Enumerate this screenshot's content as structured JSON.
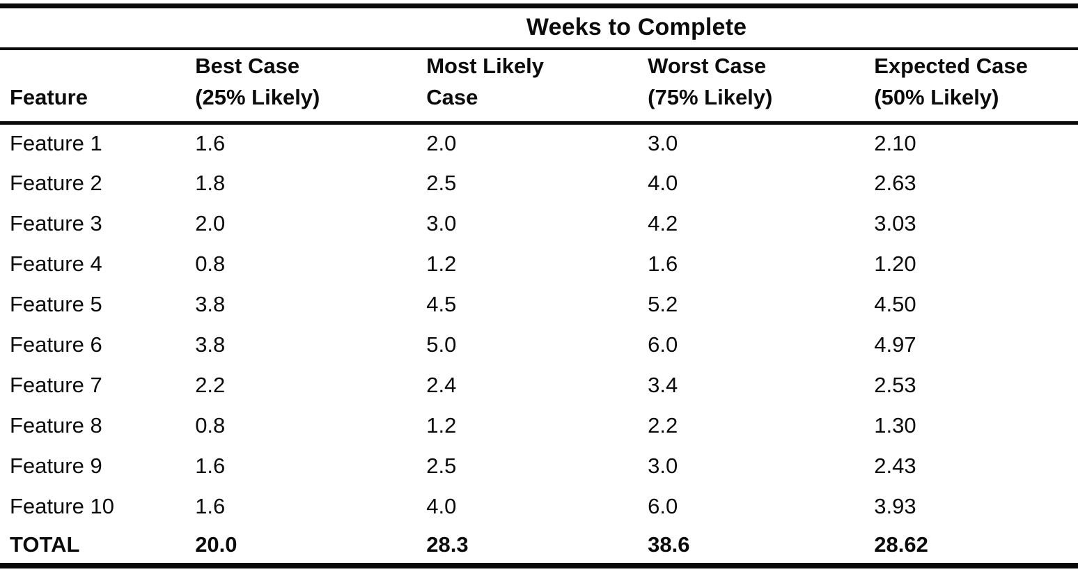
{
  "table": {
    "spanner": "Weeks to Complete",
    "columns": [
      {
        "line1": "",
        "line2": "Feature"
      },
      {
        "line1": "Best Case",
        "line2": "(25% Likely)"
      },
      {
        "line1": "Most Likely",
        "line2": "Case"
      },
      {
        "line1": "Worst Case",
        "line2": "(75% Likely)"
      },
      {
        "line1": "Expected Case",
        "line2": "(50% Likely)"
      }
    ],
    "rows": [
      {
        "feature": "Feature 1",
        "best": "1.6",
        "likely": "2.0",
        "worst": "3.0",
        "expected": "2.10"
      },
      {
        "feature": "Feature 2",
        "best": "1.8",
        "likely": "2.5",
        "worst": "4.0",
        "expected": "2.63"
      },
      {
        "feature": "Feature 3",
        "best": "2.0",
        "likely": "3.0",
        "worst": "4.2",
        "expected": "3.03"
      },
      {
        "feature": "Feature 4",
        "best": "0.8",
        "likely": "1.2",
        "worst": "1.6",
        "expected": "1.20"
      },
      {
        "feature": "Feature 5",
        "best": "3.8",
        "likely": "4.5",
        "worst": "5.2",
        "expected": "4.50"
      },
      {
        "feature": "Feature 6",
        "best": "3.8",
        "likely": "5.0",
        "worst": "6.0",
        "expected": "4.97"
      },
      {
        "feature": "Feature 7",
        "best": "2.2",
        "likely": "2.4",
        "worst": "3.4",
        "expected": "2.53"
      },
      {
        "feature": "Feature 8",
        "best": "0.8",
        "likely": "1.2",
        "worst": "2.2",
        "expected": "1.30"
      },
      {
        "feature": "Feature 9",
        "best": "1.6",
        "likely": "2.5",
        "worst": "3.0",
        "expected": "2.43"
      },
      {
        "feature": "Feature 10",
        "best": "1.6",
        "likely": "4.0",
        "worst": "6.0",
        "expected": "3.93"
      }
    ],
    "total_row": {
      "feature": "TOTAL",
      "best": "20.0",
      "likely": "28.3",
      "worst": "38.6",
      "expected": "28.62"
    },
    "ink_color": "#0b0b0b",
    "background_color": "#ffffff"
  }
}
